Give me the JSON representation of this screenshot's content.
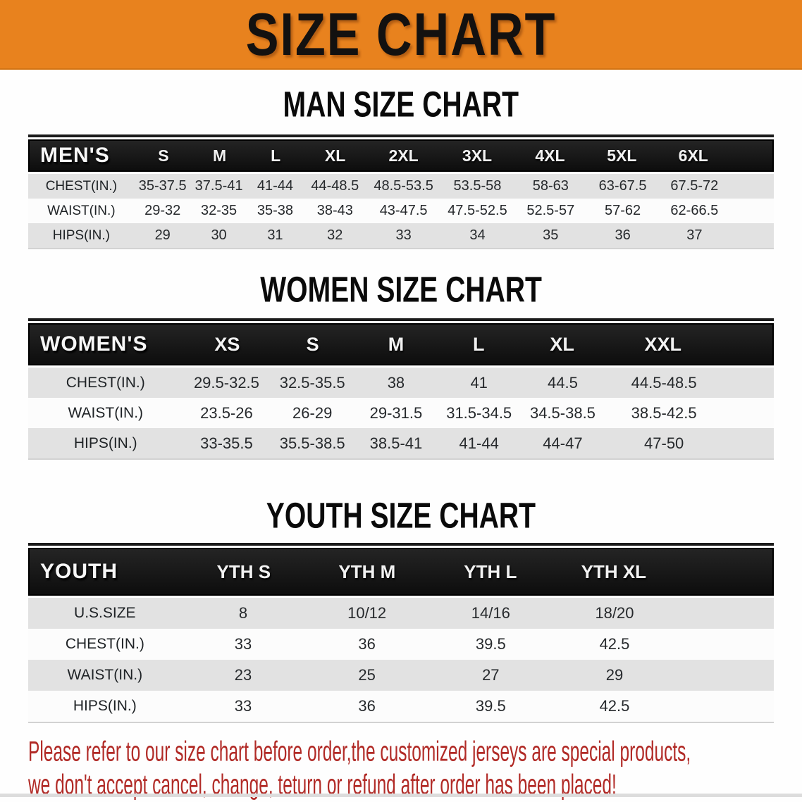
{
  "colors": {
    "banner_bg": "#e8821e",
    "header_bar": "#161616",
    "row_alt": "#e2e2e2",
    "footer_red": "#b12a26"
  },
  "banner": {
    "title": "SIZE CHART"
  },
  "sections": [
    {
      "heading": "MAN SIZE CHART",
      "group_label": "MEN'S",
      "columns": [
        "S",
        "M",
        "L",
        "XL",
        "2XL",
        "3XL",
        "4XL",
        "5XL",
        "6XL"
      ],
      "rows": [
        {
          "label": "CHEST(IN.)",
          "values": [
            "35-37.5",
            "37.5-41",
            "41-44",
            "44-48.5",
            "48.5-53.5",
            "53.5-58",
            "58-63",
            "63-67.5",
            "67.5-72"
          ]
        },
        {
          "label": "WAIST(IN.)",
          "values": [
            "29-32",
            "32-35",
            "35-38",
            "38-43",
            "43-47.5",
            "47.5-52.5",
            "52.5-57",
            "57-62",
            "62-66.5"
          ]
        },
        {
          "label": "HIPS(IN.)",
          "values": [
            "29",
            "30",
            "31",
            "32",
            "33",
            "34",
            "35",
            "36",
            "37"
          ]
        }
      ]
    },
    {
      "heading": "WOMEN SIZE CHART",
      "group_label": "WOMEN'S",
      "columns": [
        "XS",
        "S",
        "M",
        "L",
        "XL",
        "XXL"
      ],
      "rows": [
        {
          "label": "CHEST(IN.)",
          "values": [
            "29.5-32.5",
            "32.5-35.5",
            "38",
            "41",
            "44.5",
            "44.5-48.5"
          ]
        },
        {
          "label": "WAIST(IN.)",
          "values": [
            "23.5-26",
            "26-29",
            "29-31.5",
            "31.5-34.5",
            "34.5-38.5",
            "38.5-42.5"
          ]
        },
        {
          "label": "HIPS(IN.)",
          "values": [
            "33-35.5",
            "35.5-38.5",
            "38.5-41",
            "41-44",
            "44-47",
            "47-50"
          ]
        }
      ]
    },
    {
      "heading": "YOUTH SIZE CHART",
      "group_label": "YOUTH",
      "columns": [
        "YTH S",
        "YTH M",
        "YTH L",
        "YTH XL"
      ],
      "rows": [
        {
          "label": "U.S.SIZE",
          "values": [
            "8",
            "10/12",
            "14/16",
            "18/20"
          ]
        },
        {
          "label": "CHEST(IN.)",
          "values": [
            "33",
            "36",
            "39.5",
            "42.5"
          ]
        },
        {
          "label": "WAIST(IN.)",
          "values": [
            "23",
            "25",
            "27",
            "29"
          ]
        },
        {
          "label": "HIPS(IN.)",
          "values": [
            "33",
            "36",
            "39.5",
            "42.5"
          ]
        }
      ]
    }
  ],
  "footer": {
    "line1": "Please refer to our size chart before order,the customized jerseys are special products,",
    "line2": "we don't accept cancel, change, teturn or refund after order has been placed!"
  }
}
